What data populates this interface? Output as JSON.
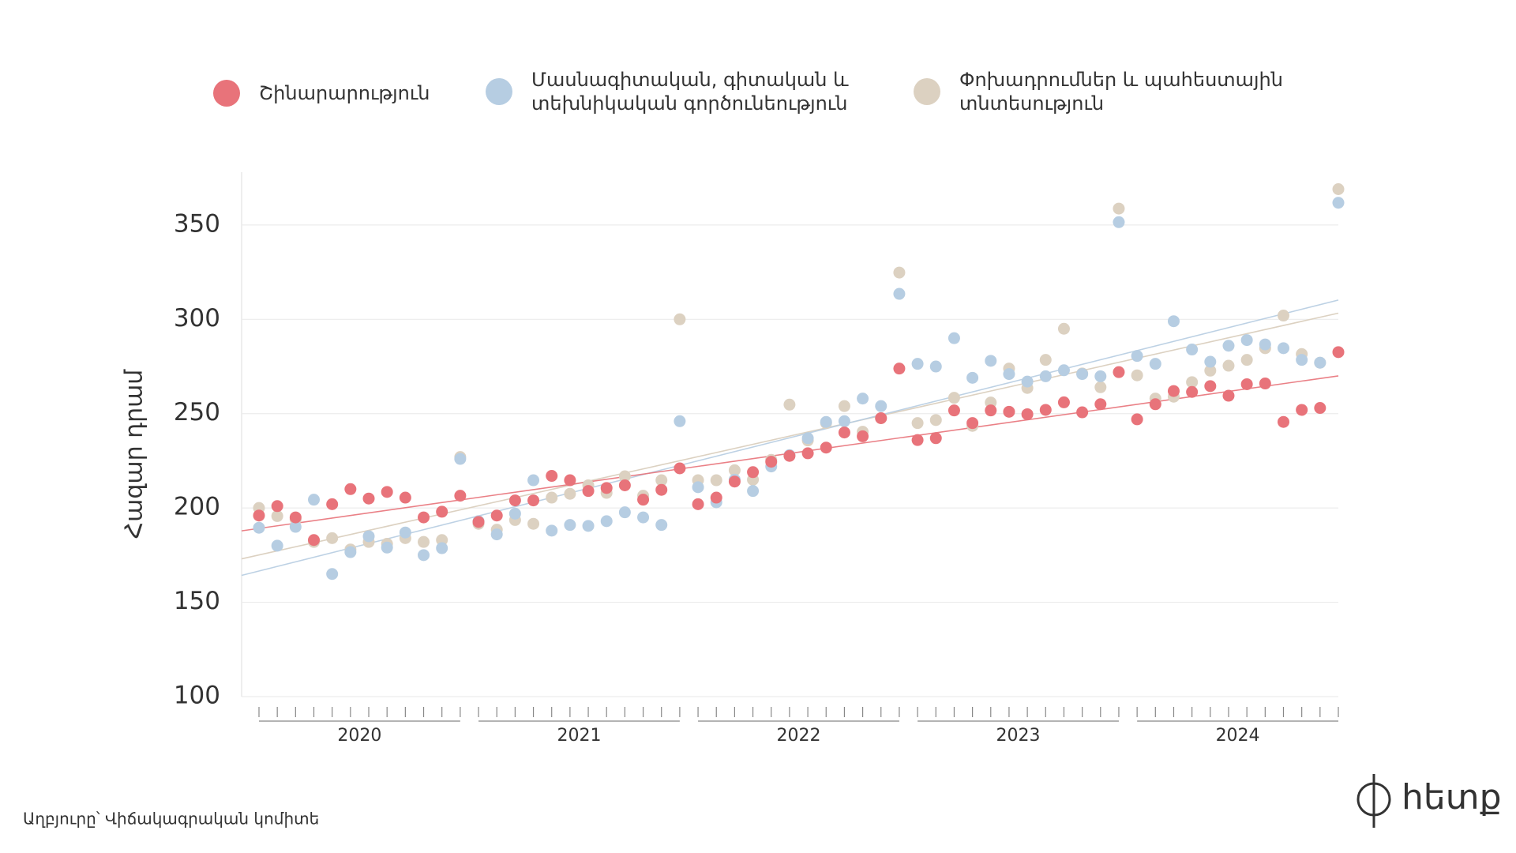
{
  "chart_data": {
    "type": "scatter",
    "y_label": "Հազար դրամ",
    "source": "Աղբյուրը՝ Վիճակագրական կոմիտե",
    "logo": "հետք",
    "categories": [
      null,
      null,
      null,
      null,
      null,
      null,
      null,
      null,
      null,
      null,
      null,
      null,
      null,
      null,
      null,
      null,
      null,
      null,
      null,
      null,
      null,
      null,
      null,
      null,
      null,
      null,
      null,
      null,
      null,
      null,
      null,
      null,
      null,
      null,
      null,
      null,
      null,
      null,
      null,
      null,
      null,
      null,
      null,
      null,
      null,
      null,
      null,
      null,
      null,
      null,
      null,
      null,
      null,
      null,
      null,
      null,
      null,
      null,
      null,
      null
    ],
    "x_groups": [
      "2020",
      "2021",
      "2022",
      "2023",
      "2024"
    ],
    "ylim": [
      100,
      378
    ],
    "yticks": [
      100,
      150,
      200,
      250,
      300,
      350
    ],
    "grid": true,
    "trend_lines": true,
    "series": [
      {
        "name": "Շինարարություն",
        "color": "#e8737a",
        "values": [
          196,
          201,
          195,
          183,
          202,
          210,
          205,
          208.5,
          205.5,
          195,
          198,
          206.5,
          192.6,
          196,
          204,
          204,
          217,
          214.7,
          209,
          210.6,
          212,
          204.4,
          209.6,
          221,
          202,
          205.5,
          214,
          219,
          224.5,
          227.6,
          229,
          232,
          240,
          238,
          247.6,
          273.9,
          236,
          237,
          251.7,
          245,
          251.7,
          251,
          249.7,
          252,
          256,
          250.7,
          255,
          272,
          247,
          255,
          262,
          261.5,
          264.6,
          259.5,
          265.6,
          266,
          245.6,
          252,
          253,
          282.6
        ]
      },
      {
        "name": "Մասնագիտական, գիտական և տեխնիկական գործունեություն",
        "color": "#b6cde2",
        "values": [
          189.5,
          180,
          190,
          204.4,
          165,
          176.6,
          185,
          179,
          187,
          175,
          178.7,
          226,
          193,
          186,
          197,
          214.7,
          188,
          191,
          190.5,
          193,
          197.7,
          195,
          191,
          246,
          211,
          203,
          215,
          209,
          222,
          228,
          237,
          245.6,
          246,
          258,
          254,
          313.5,
          276.4,
          275,
          290,
          269,
          278,
          271,
          267,
          269.8,
          273,
          271,
          269.8,
          351.5,
          280.6,
          276.4,
          299,
          284,
          277.5,
          286,
          289,
          286.7,
          284.7,
          278.5,
          277,
          361.8
        ]
      },
      {
        "name": "Փոխադրումներ և պահեստային տնտեսություն",
        "color": "#dcd1c1",
        "values": [
          200,
          195.7,
          194,
          182,
          184,
          178,
          182,
          181,
          184,
          182,
          183,
          227,
          191.6,
          188.5,
          193.6,
          191.6,
          205.5,
          207.5,
          212,
          208,
          216.8,
          206.5,
          214.7,
          300,
          214.7,
          214.7,
          220,
          215,
          225.5,
          254.8,
          235.8,
          245,
          254,
          240.4,
          247.6,
          324.8,
          245,
          246.6,
          258.4,
          243.5,
          255.9,
          273.9,
          263.6,
          278.5,
          295,
          271.3,
          264,
          358.7,
          270.3,
          258,
          259,
          266.7,
          272.8,
          275.4,
          278.5,
          284.7,
          302,
          281.6,
          277,
          369
        ]
      }
    ]
  }
}
